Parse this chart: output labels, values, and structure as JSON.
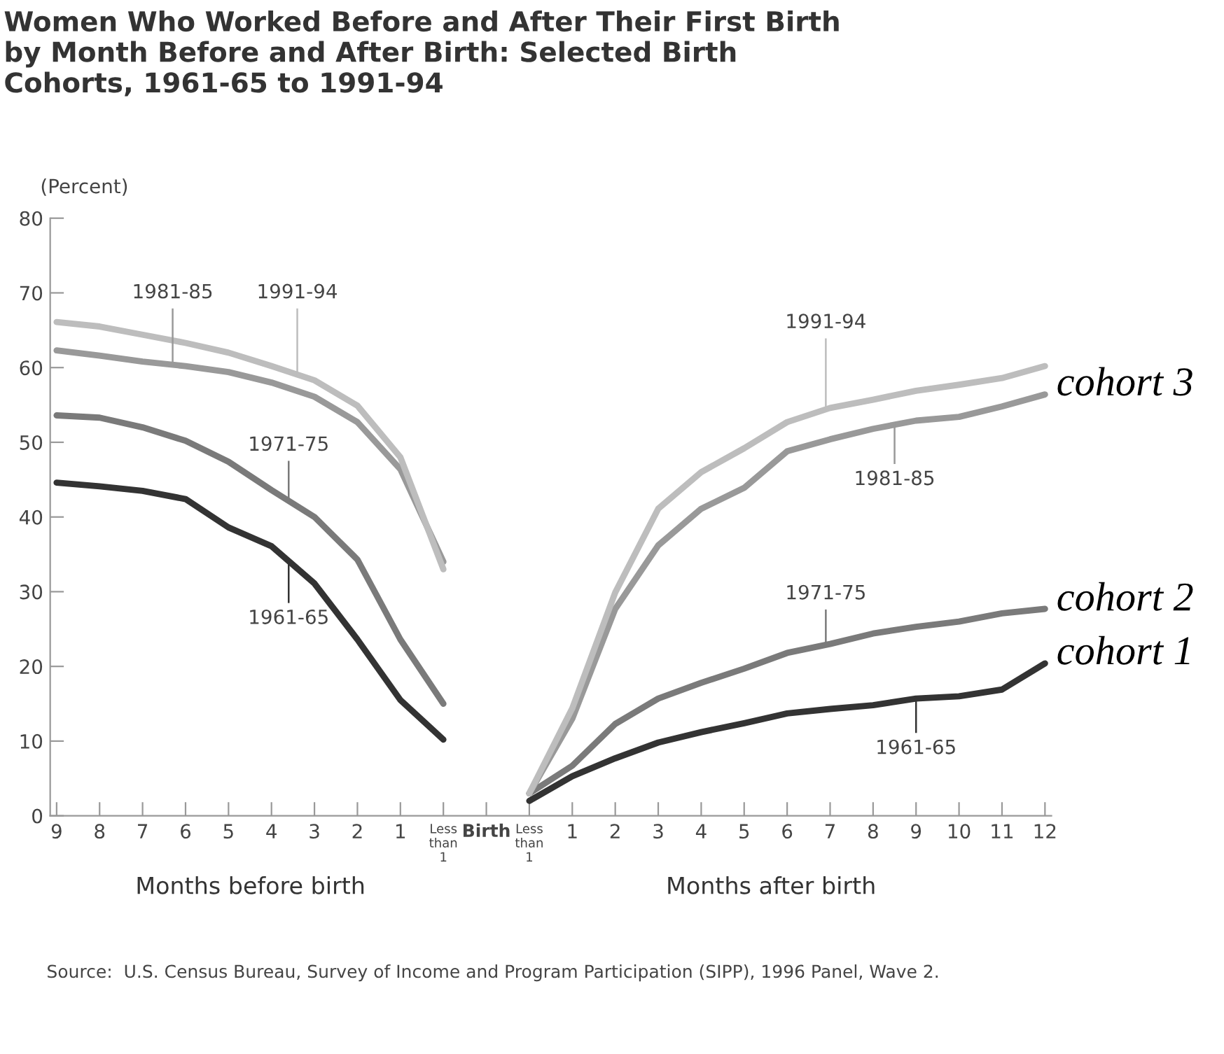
{
  "chart_data": {
    "type": "line",
    "title": "Women Who Worked Before and After Their First Birth by Month Before and After Birth: Selected Birth Cohorts, 1961-65 to 1991-94",
    "ylabel": "(Percent)",
    "categories": [
      "9",
      "8",
      "7",
      "6",
      "5",
      "4",
      "3",
      "2",
      "1",
      "Less than 1",
      "Birth",
      "Less than 1",
      "1",
      "2",
      "3",
      "4",
      "5",
      "6",
      "7",
      "8",
      "9",
      "10",
      "11",
      "12"
    ],
    "series": [
      {
        "name": "1961-65",
        "color": "#333333",
        "values": [
          44.6,
          44.1,
          43.5,
          42.4,
          38.6,
          36.1,
          31.1,
          23.6,
          15.5,
          10.2,
          null,
          2,
          5.3,
          7.7,
          9.8,
          11.2,
          12.4,
          13.7,
          14.3,
          14.8,
          15.7,
          16,
          16.9,
          20.4
        ]
      },
      {
        "name": "1971-75",
        "color": "#7a7a7a",
        "values": [
          53.6,
          53.3,
          52,
          50.2,
          47.4,
          43.6,
          40,
          34.3,
          23.6,
          15,
          null,
          3,
          6.7,
          12.3,
          15.7,
          17.8,
          19.7,
          21.8,
          23,
          24.4,
          25.3,
          26,
          27.1,
          27.7
        ]
      },
      {
        "name": "1981-85",
        "color": "#999999",
        "values": [
          62.3,
          61.6,
          60.8,
          60.2,
          59.4,
          58,
          56.1,
          52.7,
          46.4,
          34,
          null,
          3,
          13,
          27.7,
          36.2,
          41.1,
          43.9,
          48.8,
          50.4,
          51.8,
          52.9,
          53.4,
          54.8,
          56.4
        ]
      },
      {
        "name": "1991-94",
        "color": "#bdbdbd",
        "values": [
          66.1,
          65.5,
          64.4,
          63.3,
          62,
          60.2,
          58.3,
          54.9,
          48,
          33,
          null,
          3,
          14.4,
          29.9,
          41.1,
          46,
          49.2,
          52.7,
          54.6,
          55.7,
          56.9,
          57.7,
          58.6,
          60.2
        ]
      }
    ],
    "ylim": [
      0,
      80
    ],
    "yticks": [
      0,
      10,
      20,
      30,
      40,
      50,
      60,
      70,
      80
    ],
    "grid": false,
    "legend": "center",
    "marker": "none",
    "line_style": "solid",
    "annotations": [
      "Months before birth",
      "Months after birth",
      "cohort 3",
      "cohort 2",
      "cohort 1",
      "Source:  U.S. Census Bureau, Survey of Income and Program Participation (SIPP), 1996 Panel, Wave 2."
    ]
  }
}
